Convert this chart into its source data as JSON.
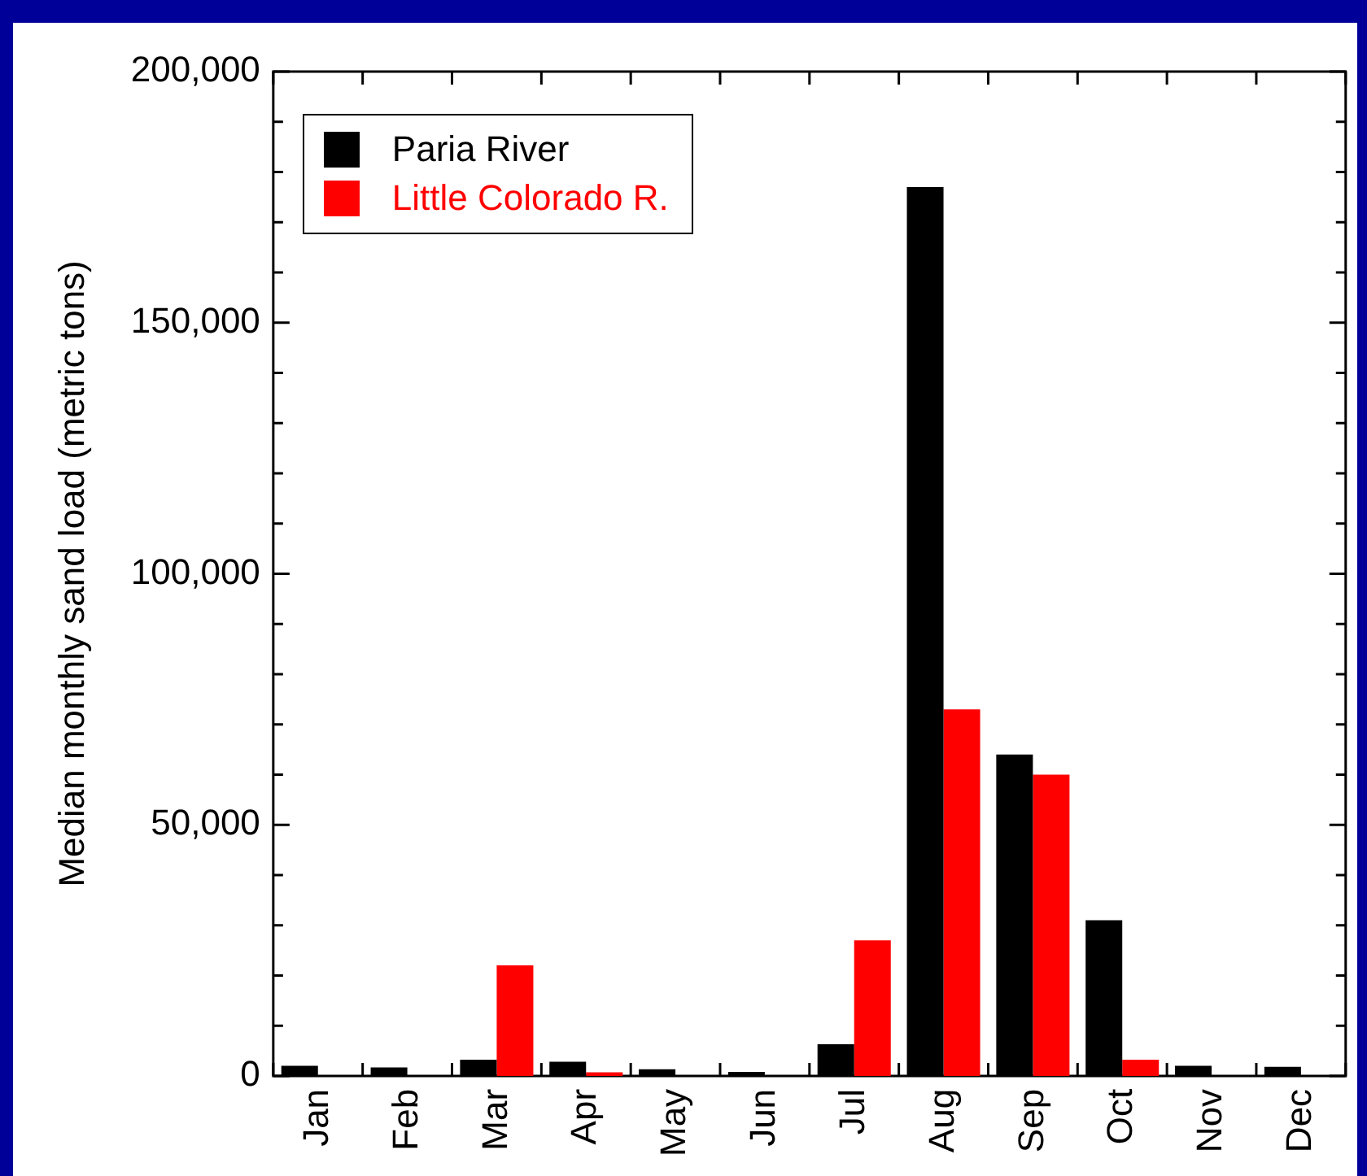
{
  "chart_data": {
    "type": "bar",
    "ylabel": "Median monthly sand load (metric tons)",
    "categories": [
      "Jan",
      "Feb",
      "Mar",
      "Apr",
      "May",
      "Jun",
      "Jul",
      "Aug",
      "Sep",
      "Oct",
      "Nov",
      "Dec"
    ],
    "series": [
      {
        "name": "Paria River",
        "color": "#000000",
        "values": [
          2000,
          1700,
          3200,
          2800,
          1300,
          800,
          6300,
          177000,
          64000,
          31000,
          2000,
          1800
        ]
      },
      {
        "name": "Little Colorado R.",
        "color": "#ff0000",
        "values": [
          0,
          0,
          22000,
          700,
          0,
          0,
          27000,
          73000,
          60000,
          3200,
          0,
          0
        ]
      }
    ],
    "ylim": [
      0,
      200000
    ],
    "yticks": [
      0,
      {
        "value": 10000,
        "label": null
      },
      {
        "value": 20000,
        "label": null
      },
      {
        "value": 30000,
        "label": null
      },
      {
        "value": 40000,
        "label": null
      },
      {
        "value": 50000,
        "label": "50,000"
      },
      {
        "value": 60000,
        "label": null
      },
      {
        "value": 70000,
        "label": null
      },
      {
        "value": 80000,
        "label": null
      },
      {
        "value": 90000,
        "label": null
      },
      {
        "value": 100000,
        "label": "100,000"
      },
      {
        "value": 110000,
        "label": null
      },
      {
        "value": 120000,
        "label": null
      },
      {
        "value": 130000,
        "label": null
      },
      {
        "value": 140000,
        "label": null
      },
      {
        "value": 150000,
        "label": "150,000"
      },
      {
        "value": 160000,
        "label": null
      },
      {
        "value": 170000,
        "label": null
      },
      {
        "value": 180000,
        "label": null
      },
      {
        "value": 190000,
        "label": null
      },
      {
        "value": 200000,
        "label": "200,000"
      }
    ],
    "grid": false,
    "legend": "top left"
  }
}
